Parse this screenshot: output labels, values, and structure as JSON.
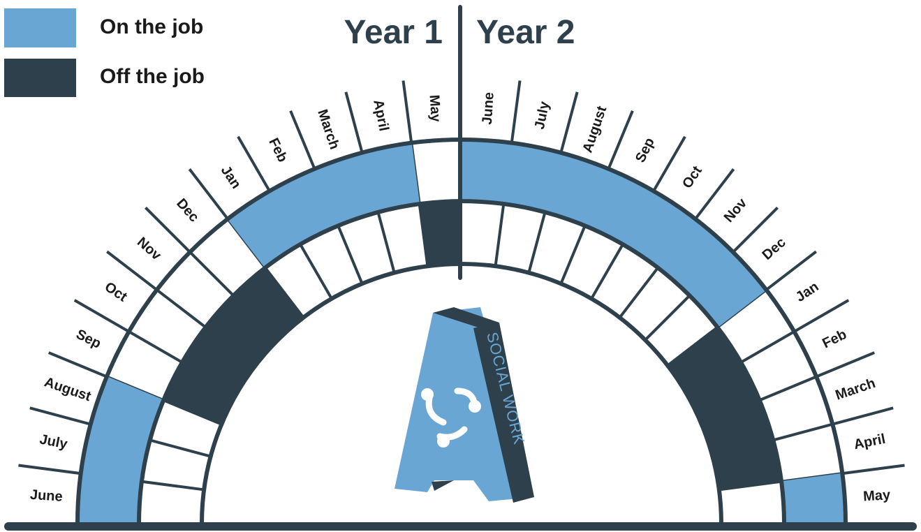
{
  "legend": [
    {
      "label": "On the job"
    },
    {
      "label": "Off the job"
    }
  ],
  "years": [
    "Year 1",
    "Year 2"
  ],
  "months": [
    "June",
    "July",
    "August",
    "Sep",
    "Oct",
    "Nov",
    "Dec",
    "Jan",
    "Feb",
    "March",
    "April",
    "May",
    "June",
    "July",
    "August",
    "Sep",
    "Oct",
    "Nov",
    "Dec",
    "Jan",
    "Feb",
    "March",
    "April",
    "May"
  ],
  "logo_text": "SOCIAL WORK"
}
